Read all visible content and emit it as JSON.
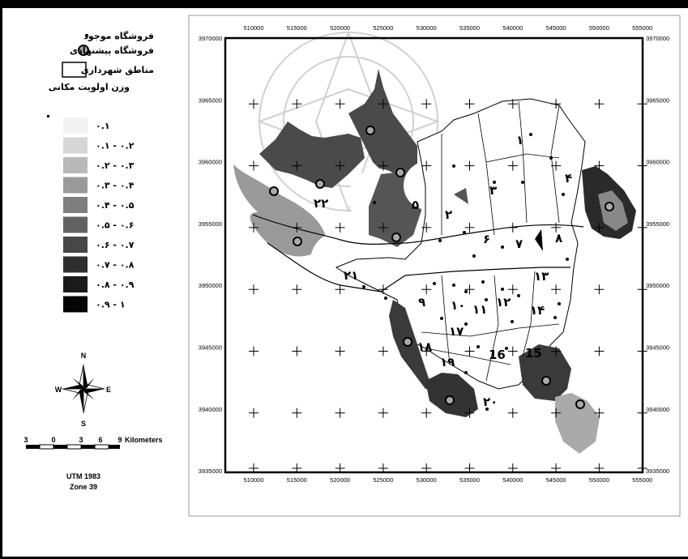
{
  "legend": {
    "existing_store": "فروشگاه موجود",
    "proposed_store": "فروشگاه پیشنهادی",
    "municipal_districts": "مناطق شهرداری",
    "priority_title": "وزن اولویت مکانی",
    "classes": [
      {
        "label": "۰.۱",
        "color": "#f2f2f2"
      },
      {
        "label": "۰.۱ - ۰.۲",
        "color": "#d6d6d6"
      },
      {
        "label": "۰.۲ - ۰.۳",
        "color": "#b8b8b8"
      },
      {
        "label": "۰.۳ - ۰.۴",
        "color": "#9a9a9a"
      },
      {
        "label": "۰.۴ - ۰.۵",
        "color": "#7e7e7e"
      },
      {
        "label": "۰.۵ - ۰.۶",
        "color": "#626262"
      },
      {
        "label": "۰.۶ - ۰.۷",
        "color": "#474747"
      },
      {
        "label": "۰.۷ - ۰.۸",
        "color": "#2e2e2e"
      },
      {
        "label": "۰.۸ - ۰.۹",
        "color": "#1a1a1a"
      },
      {
        "label": "۰.۹ - ۱",
        "color": "#050505"
      }
    ]
  },
  "north_arrow": {
    "n": "N",
    "s": "S",
    "e": "E",
    "w": "W"
  },
  "scale_bar": {
    "ticks": [
      "3",
      "0",
      "3",
      "6",
      "9"
    ],
    "unit": "Kilometers"
  },
  "projection": {
    "line1": "UTM 1983",
    "line2": "Zone 39"
  },
  "axes": {
    "x_ticks": [
      "510000",
      "515000",
      "520000",
      "525000",
      "530000",
      "535000",
      "540000",
      "545000",
      "550000",
      "555000"
    ],
    "y_ticks": [
      "3970000",
      "3965000",
      "3960000",
      "3955000",
      "3950000",
      "3945000",
      "3940000",
      "3935000"
    ]
  },
  "districts": [
    {
      "label": "۱"
    },
    {
      "label": "۲"
    },
    {
      "label": "۳"
    },
    {
      "label": "۴"
    },
    {
      "label": "۵"
    },
    {
      "label": "۶"
    },
    {
      "label": "۷"
    },
    {
      "label": "۸"
    },
    {
      "label": "۹"
    },
    {
      "label": "۱۰"
    },
    {
      "label": "۱۱"
    },
    {
      "label": "۱۲"
    },
    {
      "label": "۱۳"
    },
    {
      "label": "۱۴"
    },
    {
      "label": "15"
    },
    {
      "label": "16"
    },
    {
      "label": "۱۷"
    },
    {
      "label": "۱۸"
    },
    {
      "label": "۱۹"
    },
    {
      "label": "۲۰"
    },
    {
      "label": "۲۱"
    },
    {
      "label": "۲۲"
    }
  ]
}
